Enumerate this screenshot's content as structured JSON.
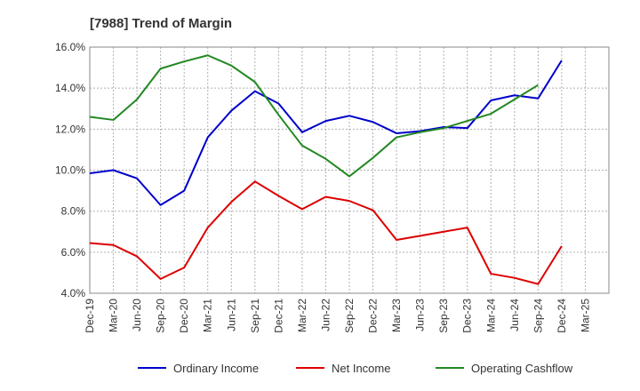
{
  "chart_data": {
    "type": "line",
    "title": "[7988]  Trend of Margin",
    "xlabel": "",
    "ylabel": "",
    "x_ticks": [
      "Dec-19",
      "Mar-20",
      "Jun-20",
      "Sep-20",
      "Dec-20",
      "Mar-21",
      "Jun-21",
      "Sep-21",
      "Dec-21",
      "Mar-22",
      "Jun-22",
      "Sep-22",
      "Dec-22",
      "Mar-23",
      "Jun-23",
      "Sep-23",
      "Dec-23",
      "Mar-24",
      "Jun-24",
      "Sep-24",
      "Dec-24",
      "Mar-25"
    ],
    "y_ticks": [
      "4.0%",
      "6.0%",
      "8.0%",
      "10.0%",
      "12.0%",
      "14.0%",
      "16.0%"
    ],
    "ylim": [
      4.0,
      16.0
    ],
    "y_tick_values": [
      4,
      6,
      8,
      10,
      12,
      14,
      16
    ],
    "grid": true,
    "legend_position": "bottom",
    "series": [
      {
        "name": "Ordinary Income",
        "color": "#0000cc",
        "values": [
          9.85,
          10.0,
          9.6,
          8.3,
          9.0,
          11.6,
          12.9,
          13.85,
          13.25,
          11.85,
          12.4,
          12.65,
          12.35,
          11.8,
          11.9,
          12.1,
          12.05,
          13.4,
          13.65,
          13.5,
          15.35,
          null
        ]
      },
      {
        "name": "Net Income",
        "color": "#dd0000",
        "values": [
          6.45,
          6.35,
          5.8,
          4.7,
          5.25,
          7.2,
          8.45,
          9.45,
          8.75,
          8.1,
          8.7,
          8.5,
          8.05,
          6.6,
          6.8,
          7.0,
          7.2,
          4.95,
          4.75,
          4.45,
          6.3,
          null
        ]
      },
      {
        "name": "Operating Cashflow",
        "color": "#228822",
        "values": [
          12.6,
          12.45,
          13.45,
          14.95,
          15.3,
          15.6,
          15.1,
          14.3,
          12.7,
          11.2,
          10.55,
          9.7,
          10.6,
          11.6,
          11.85,
          12.05,
          12.4,
          12.75,
          13.45,
          14.15,
          null,
          null
        ]
      }
    ]
  }
}
